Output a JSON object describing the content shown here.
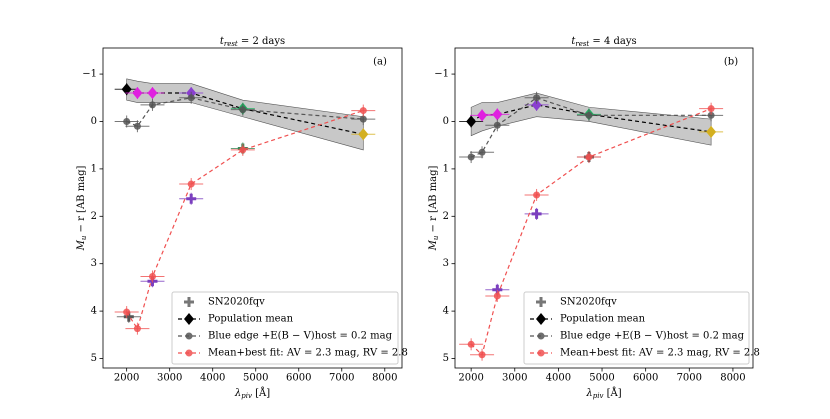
{
  "chart_data": [
    {
      "type": "scatter",
      "title": {
        "main": "t",
        "sub": "rest",
        "rest": " = 2 days"
      },
      "annotation": "(a)",
      "x_label": {
        "main": "λ",
        "sub": "piv",
        "rest": " [Å]"
      },
      "y_label": {
        "main": "M",
        "sub": "u",
        "rest": " − r [AB mag]"
      },
      "xlim": [
        1450,
        8400
      ],
      "xticks": [
        2000,
        3000,
        4000,
        5000,
        6000,
        7000,
        8000
      ],
      "ylim": [
        -1.55,
        5.2
      ],
      "y_inverted": true,
      "yticks": [
        {
          "value": -1,
          "label": "−1"
        },
        0,
        1,
        2,
        3,
        4,
        5
      ],
      "band": {
        "color": "#b0b0b0",
        "x": [
          2000,
          2250,
          2600,
          3500,
          4700,
          7500
        ],
        "lower": [
          -0.9,
          -0.85,
          -0.8,
          -0.8,
          -0.45,
          -0.1
        ],
        "upper": [
          -0.45,
          -0.4,
          -0.4,
          -0.4,
          -0.1,
          0.6
        ]
      },
      "series": [
        {
          "name": "SN2020fqv",
          "marker": "plus",
          "line": "none",
          "color": "#777777",
          "x": [
            2050,
            2600,
            3500,
            4700
          ],
          "y": [
            4.12,
            3.37,
            1.63,
            0.57
          ],
          "point_colors": [
            "#555555",
            "#7b3fbf",
            "#7b3fbf",
            "#3a8a5a"
          ]
        },
        {
          "name": "Population mean",
          "marker": "diamond",
          "line": "dashed",
          "color": "#000000",
          "x": [
            2000,
            2250,
            2600,
            3500,
            4700,
            7500
          ],
          "y": [
            -0.68,
            -0.6,
            -0.6,
            -0.6,
            -0.27,
            0.27
          ],
          "point_colors": [
            "#000000",
            "#e020e0",
            "#e020e0",
            "#8a3fd0",
            "#20b060",
            "#d4b020"
          ]
        },
        {
          "name": "Blue edge +E(B − V)host = 0.2 mag",
          "marker": "circle",
          "line": "dashed",
          "color": "#555555",
          "x": [
            2000,
            2250,
            2600,
            3500,
            4700,
            7500
          ],
          "y": [
            0.0,
            0.1,
            -0.35,
            -0.5,
            -0.25,
            -0.05
          ],
          "point_colors": [
            "#555555",
            "#555555",
            "#555555",
            "#555555",
            "#555555",
            "#555555"
          ]
        },
        {
          "name": "Mean+best fit: AV = 2.3 mag, RV = 2.8",
          "marker": "circle",
          "line": "dashed",
          "color": "#f05050",
          "x": [
            2000,
            2250,
            2600,
            3500,
            4700,
            7500
          ],
          "y": [
            4.02,
            4.37,
            3.27,
            1.32,
            0.6,
            -0.23
          ],
          "point_colors": [
            "#f05050",
            "#f05050",
            "#f05050",
            "#f05050",
            "#f05050",
            "#f05050"
          ]
        }
      ]
    },
    {
      "type": "scatter",
      "title": {
        "main": "t",
        "sub": "rest",
        "rest": " = 4 days"
      },
      "annotation": "(b)",
      "x_label": {
        "main": "λ",
        "sub": "piv",
        "rest": " [Å]"
      },
      "y_label": {
        "main": "M",
        "sub": "u",
        "rest": " − r [AB mag]"
      },
      "xlim": [
        1630,
        8460
      ],
      "xticks": [
        2000,
        3000,
        4000,
        5000,
        6000,
        7000,
        8000
      ],
      "ylim": [
        -1.55,
        5.2
      ],
      "y_inverted": true,
      "yticks": [
        {
          "value": -1,
          "label": "−1"
        },
        0,
        1,
        2,
        3,
        4,
        5
      ],
      "band": {
        "color": "#b0b0b0",
        "x": [
          2000,
          2250,
          2600,
          3500,
          4700,
          7500
        ],
        "lower": [
          -0.3,
          -0.4,
          -0.4,
          -0.6,
          -0.3,
          -0.05
        ],
        "upper": [
          0.3,
          0.2,
          0.1,
          -0.1,
          0.0,
          0.5
        ]
      },
      "series": [
        {
          "name": "SN2020fqv",
          "marker": "plus",
          "line": "none",
          "color": "#777777",
          "x": [
            2600,
            3500,
            4700
          ],
          "y": [
            3.55,
            1.95,
            0.75
          ],
          "point_colors": [
            "#7b3fbf",
            "#7b3fbf",
            "#555555"
          ]
        },
        {
          "name": "Population mean",
          "marker": "diamond",
          "line": "dashed",
          "color": "#000000",
          "x": [
            2000,
            2250,
            2600,
            3500,
            4700,
            7500
          ],
          "y": [
            0.0,
            -0.13,
            -0.15,
            -0.35,
            -0.15,
            0.22
          ],
          "point_colors": [
            "#000000",
            "#e020e0",
            "#e020e0",
            "#8a3fd0",
            "#20b060",
            "#d4b020"
          ]
        },
        {
          "name": "Blue edge +E(B − V)host = 0.2 mag",
          "marker": "circle",
          "line": "dashed",
          "color": "#555555",
          "x": [
            2000,
            2250,
            2600,
            3500,
            4700,
            7500
          ],
          "y": [
            0.75,
            0.65,
            0.08,
            -0.5,
            -0.13,
            -0.13
          ],
          "point_colors": [
            "#555555",
            "#555555",
            "#555555",
            "#555555",
            "#555555",
            "#555555"
          ]
        },
        {
          "name": "Mean+best fit: AV = 2.3 mag, RV = 2.8",
          "marker": "circle",
          "line": "dashed",
          "color": "#f05050",
          "x": [
            2000,
            2250,
            2600,
            3500,
            4700,
            7500
          ],
          "y": [
            4.7,
            4.92,
            3.68,
            1.55,
            0.75,
            -0.27
          ],
          "point_colors": [
            "#f05050",
            "#f05050",
            "#f05050",
            "#f05050",
            "#f05050",
            "#f05050"
          ]
        }
      ]
    }
  ]
}
